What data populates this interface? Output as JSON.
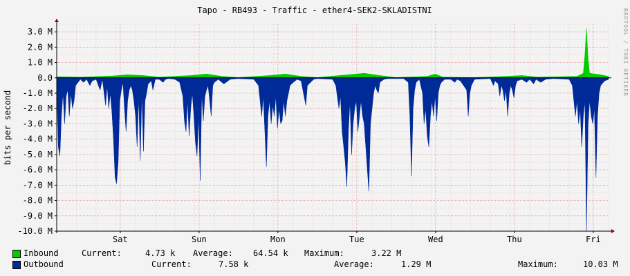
{
  "chart_data": {
    "type": "area",
    "title": "Tapo - RB493 - Traffic - ether4-SEK2-SKLADISTNI",
    "ylabel": "bits per second",
    "watermark": "RRDTOOL / TOBI OETIKER",
    "ylim": [
      -10.0,
      3.5
    ],
    "y_unit": "M",
    "yticks": [
      "3.0 M",
      "2.0 M",
      "1.0 M",
      "0.0",
      "-1.0 M",
      "-2.0 M",
      "-3.0 M",
      "-4.0 M",
      "-5.0 M",
      "-6.0 M",
      "-7.0 M",
      "-8.0 M",
      "-9.0 M",
      "-10.0 M"
    ],
    "ytick_values": [
      3,
      2,
      1,
      0,
      -1,
      -2,
      -3,
      -4,
      -5,
      -6,
      -7,
      -8,
      -9,
      -10
    ],
    "xticks": [
      "Sat",
      "Sun",
      "Mon",
      "Tue",
      "Wed",
      "Thu",
      "Fri"
    ],
    "x_range_days": [
      0,
      7
    ],
    "xtick_positions_days": [
      0.806,
      1.806,
      2.806,
      3.806,
      4.806,
      5.806,
      6.806
    ],
    "grid": true,
    "legend_position": "bottom",
    "colors": {
      "inbound": "#00cc00",
      "outbound": "#002a97",
      "grid": "#e5a0a0",
      "axis": "#000000",
      "arrow": "#990000"
    },
    "series": [
      {
        "name": "Inbound",
        "color": "#00cc00",
        "current": "4.73 k",
        "average": "64.54 k",
        "maximum": "3.22 M",
        "points": [
          [
            0,
            0.08
          ],
          [
            0.3,
            0.05
          ],
          [
            0.7,
            0.12
          ],
          [
            0.9,
            0.2
          ],
          [
            1.1,
            0.15
          ],
          [
            1.3,
            0.05
          ],
          [
            1.7,
            0.15
          ],
          [
            1.9,
            0.25
          ],
          [
            2.1,
            0.1
          ],
          [
            2.3,
            0.02
          ],
          [
            2.7,
            0.15
          ],
          [
            2.9,
            0.25
          ],
          [
            3.1,
            0.1
          ],
          [
            3.3,
            0.02
          ],
          [
            3.7,
            0.2
          ],
          [
            3.9,
            0.3
          ],
          [
            4.1,
            0.15
          ],
          [
            4.3,
            0.02
          ],
          [
            4.7,
            0.1
          ],
          [
            4.8,
            0.25
          ],
          [
            4.9,
            0.05
          ],
          [
            5.3,
            0.02
          ],
          [
            5.7,
            0.1
          ],
          [
            5.9,
            0.15
          ],
          [
            6.1,
            0.05
          ],
          [
            6.6,
            0.1
          ],
          [
            6.68,
            0.3
          ],
          [
            6.7,
            1.5
          ],
          [
            6.72,
            3.22
          ],
          [
            6.74,
            1.2
          ],
          [
            6.76,
            0.3
          ],
          [
            6.9,
            0.2
          ],
          [
            7.0,
            0.1
          ]
        ]
      },
      {
        "name": "Outbound",
        "color": "#002a97",
        "current": "7.58 k",
        "average": "1.29 M",
        "maximum": "10.03 M",
        "points": [
          [
            0.0,
            -0.5
          ],
          [
            0.02,
            -4.5
          ],
          [
            0.04,
            -5.1
          ],
          [
            0.06,
            -2.5
          ],
          [
            0.08,
            -1.0
          ],
          [
            0.1,
            -3.0
          ],
          [
            0.12,
            -1.2
          ],
          [
            0.14,
            -0.8
          ],
          [
            0.16,
            -2.5
          ],
          [
            0.18,
            -1.0
          ],
          [
            0.2,
            -2.0
          ],
          [
            0.22,
            -1.5
          ],
          [
            0.24,
            -0.5
          ],
          [
            0.3,
            -0.1
          ],
          [
            0.34,
            -0.3
          ],
          [
            0.38,
            -0.1
          ],
          [
            0.42,
            -0.5
          ],
          [
            0.45,
            -0.2
          ],
          [
            0.5,
            -0.1
          ],
          [
            0.55,
            -0.8
          ],
          [
            0.58,
            -0.1
          ],
          [
            0.62,
            -1.8
          ],
          [
            0.64,
            -0.5
          ],
          [
            0.66,
            -2.0
          ],
          [
            0.68,
            -1.0
          ],
          [
            0.7,
            -2.2
          ],
          [
            0.72,
            -4.0
          ],
          [
            0.74,
            -6.5
          ],
          [
            0.76,
            -6.9
          ],
          [
            0.78,
            -5.5
          ],
          [
            0.8,
            -1.5
          ],
          [
            0.82,
            -0.8
          ],
          [
            0.84,
            -0.3
          ],
          [
            0.86,
            -2.0
          ],
          [
            0.88,
            -3.5
          ],
          [
            0.9,
            -1.5
          ],
          [
            0.92,
            -0.8
          ],
          [
            0.94,
            -0.5
          ],
          [
            0.96,
            -0.8
          ],
          [
            0.98,
            -1.5
          ],
          [
            1.0,
            -2.5
          ],
          [
            1.02,
            -4.5
          ],
          [
            1.04,
            -1.2
          ],
          [
            1.06,
            -5.4
          ],
          [
            1.08,
            -1.0
          ],
          [
            1.1,
            -4.8
          ],
          [
            1.12,
            -1.5
          ],
          [
            1.14,
            -1.0
          ],
          [
            1.16,
            -0.4
          ],
          [
            1.2,
            -0.2
          ],
          [
            1.22,
            -0.8
          ],
          [
            1.25,
            -0.1
          ],
          [
            1.3,
            -0.1
          ],
          [
            1.35,
            -0.3
          ],
          [
            1.38,
            -0.1
          ],
          [
            1.42,
            -0.05
          ],
          [
            1.5,
            -0.1
          ],
          [
            1.56,
            -0.3
          ],
          [
            1.6,
            -1.2
          ],
          [
            1.62,
            -2.8
          ],
          [
            1.64,
            -3.5
          ],
          [
            1.66,
            -1.5
          ],
          [
            1.68,
            -3.8
          ],
          [
            1.7,
            -2.0
          ],
          [
            1.72,
            -1.0
          ],
          [
            1.74,
            -2.5
          ],
          [
            1.76,
            -4.2
          ],
          [
            1.78,
            -5.1
          ],
          [
            1.8,
            -2.5
          ],
          [
            1.82,
            -6.7
          ],
          [
            1.84,
            -1.0
          ],
          [
            1.86,
            -2.8
          ],
          [
            1.88,
            -1.2
          ],
          [
            1.9,
            -0.8
          ],
          [
            1.92,
            -0.5
          ],
          [
            1.94,
            -1.5
          ],
          [
            1.96,
            -2.5
          ],
          [
            1.98,
            -0.5
          ],
          [
            2.0,
            -0.3
          ],
          [
            2.05,
            -0.1
          ],
          [
            2.12,
            -0.4
          ],
          [
            2.2,
            -0.1
          ],
          [
            2.3,
            -0.05
          ],
          [
            2.5,
            -0.1
          ],
          [
            2.56,
            -0.5
          ],
          [
            2.58,
            -1.5
          ],
          [
            2.6,
            -2.5
          ],
          [
            2.62,
            -1.2
          ],
          [
            2.64,
            -3.5
          ],
          [
            2.66,
            -5.8
          ],
          [
            2.68,
            -2.5
          ],
          [
            2.7,
            -1.5
          ],
          [
            2.72,
            -3.0
          ],
          [
            2.74,
            -1.8
          ],
          [
            2.76,
            -2.5
          ],
          [
            2.78,
            -1.2
          ],
          [
            2.8,
            -3.3
          ],
          [
            2.82,
            -2.0
          ],
          [
            2.84,
            -3.0
          ],
          [
            2.86,
            -2.8
          ],
          [
            2.88,
            -1.5
          ],
          [
            2.9,
            -2.5
          ],
          [
            2.92,
            -1.5
          ],
          [
            2.94,
            -1.0
          ],
          [
            2.96,
            -0.5
          ],
          [
            3.0,
            -0.3
          ],
          [
            3.05,
            -0.1
          ],
          [
            3.1,
            -0.2
          ],
          [
            3.16,
            -1.8
          ],
          [
            3.18,
            -0.5
          ],
          [
            3.22,
            -0.3
          ],
          [
            3.26,
            -0.1
          ],
          [
            3.3,
            -0.05
          ],
          [
            3.5,
            -0.1
          ],
          [
            3.54,
            -0.5
          ],
          [
            3.58,
            -2.0
          ],
          [
            3.6,
            -1.2
          ],
          [
            3.62,
            -3.5
          ],
          [
            3.64,
            -4.5
          ],
          [
            3.66,
            -5.5
          ],
          [
            3.68,
            -7.1
          ],
          [
            3.7,
            -3.5
          ],
          [
            3.72,
            -1.5
          ],
          [
            3.74,
            -5.0
          ],
          [
            3.76,
            -3.0
          ],
          [
            3.78,
            -2.0
          ],
          [
            3.8,
            -1.5
          ],
          [
            3.82,
            -3.5
          ],
          [
            3.84,
            -2.5
          ],
          [
            3.86,
            -1.5
          ],
          [
            3.88,
            -2.5
          ],
          [
            3.9,
            -3.0
          ],
          [
            3.92,
            -4.5
          ],
          [
            3.94,
            -6.0
          ],
          [
            3.96,
            -7.4
          ],
          [
            3.98,
            -3.0
          ],
          [
            4.0,
            -2.0
          ],
          [
            4.02,
            -1.0
          ],
          [
            4.04,
            -0.5
          ],
          [
            4.06,
            -0.8
          ],
          [
            4.08,
            -1.0
          ],
          [
            4.1,
            -0.3
          ],
          [
            4.15,
            -0.1
          ],
          [
            4.2,
            -0.05
          ],
          [
            4.4,
            -0.05
          ],
          [
            4.46,
            -0.3
          ],
          [
            4.48,
            -2.5
          ],
          [
            4.5,
            -6.4
          ],
          [
            4.52,
            -2.0
          ],
          [
            4.54,
            -0.8
          ],
          [
            4.56,
            -0.3
          ],
          [
            4.6,
            -0.1
          ],
          [
            4.64,
            -1.0
          ],
          [
            4.66,
            -3.0
          ],
          [
            4.68,
            -2.0
          ],
          [
            4.7,
            -3.8
          ],
          [
            4.72,
            -4.5
          ],
          [
            4.74,
            -2.5
          ],
          [
            4.76,
            -1.5
          ],
          [
            4.78,
            -2.5
          ],
          [
            4.8,
            -1.2
          ],
          [
            4.82,
            -2.8
          ],
          [
            4.84,
            -1.0
          ],
          [
            4.86,
            -0.5
          ],
          [
            4.88,
            -0.3
          ],
          [
            4.92,
            -0.1
          ],
          [
            5.0,
            -0.1
          ],
          [
            5.05,
            -0.3
          ],
          [
            5.08,
            -0.1
          ],
          [
            5.12,
            -0.2
          ],
          [
            5.2,
            -0.8
          ],
          [
            5.22,
            -2.5
          ],
          [
            5.24,
            -1.0
          ],
          [
            5.26,
            -0.5
          ],
          [
            5.3,
            -0.1
          ],
          [
            5.5,
            -0.05
          ],
          [
            5.54,
            -0.5
          ],
          [
            5.56,
            -0.2
          ],
          [
            5.6,
            -0.4
          ],
          [
            5.62,
            -1.2
          ],
          [
            5.64,
            -0.5
          ],
          [
            5.66,
            -0.8
          ],
          [
            5.68,
            -1.5
          ],
          [
            5.7,
            -0.8
          ],
          [
            5.72,
            -2.5
          ],
          [
            5.74,
            -1.0
          ],
          [
            5.76,
            -0.5
          ],
          [
            5.78,
            -0.8
          ],
          [
            5.8,
            -1.3
          ],
          [
            5.82,
            -0.5
          ],
          [
            5.84,
            -0.2
          ],
          [
            5.9,
            -0.1
          ],
          [
            5.96,
            -0.3
          ],
          [
            6.0,
            -0.1
          ],
          [
            6.05,
            -0.4
          ],
          [
            6.08,
            -0.1
          ],
          [
            6.14,
            -0.3
          ],
          [
            6.2,
            -0.1
          ],
          [
            6.3,
            -0.05
          ],
          [
            6.5,
            -0.1
          ],
          [
            6.54,
            -0.5
          ],
          [
            6.56,
            -1.5
          ],
          [
            6.58,
            -2.5
          ],
          [
            6.6,
            -1.5
          ],
          [
            6.62,
            -3.0
          ],
          [
            6.64,
            -2.0
          ],
          [
            6.66,
            -4.5
          ],
          [
            6.68,
            -2.5
          ],
          [
            6.7,
            -1.5
          ],
          [
            6.72,
            -10.0
          ],
          [
            6.74,
            -3.0
          ],
          [
            6.76,
            -1.5
          ],
          [
            6.78,
            -2.5
          ],
          [
            6.8,
            -3.0
          ],
          [
            6.82,
            -2.0
          ],
          [
            6.84,
            -6.5
          ],
          [
            6.86,
            -2.5
          ],
          [
            6.88,
            -1.0
          ],
          [
            6.9,
            -0.5
          ],
          [
            6.95,
            -0.2
          ],
          [
            7.0,
            -0.1
          ]
        ]
      }
    ]
  },
  "legend": {
    "inbound": {
      "label": "Inbound",
      "current_label": "Current:",
      "current": "4.73 k",
      "average_label": "Average:",
      "average": "64.54 k",
      "maximum_label": "Maximum:",
      "maximum": "3.22 M"
    },
    "outbound": {
      "label": "Outbound",
      "current_label": "Current:",
      "current": "7.58 k",
      "average_label": "Average:",
      "average": "1.29 M",
      "maximum_label": "Maximum:",
      "maximum": "10.03 M"
    }
  }
}
